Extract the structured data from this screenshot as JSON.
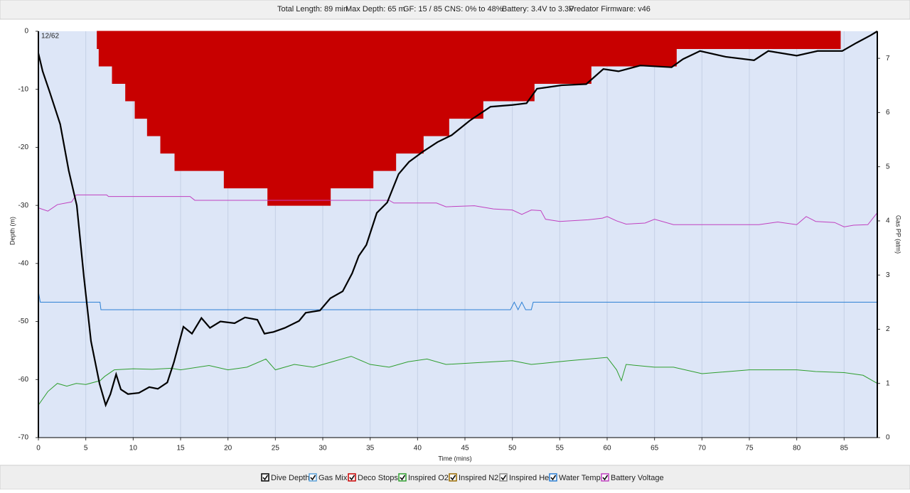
{
  "header": [
    "Total Length: 89 min",
    "Max Depth: 65 m",
    "GF: 15 / 85",
    "CNS: 0% to 48%",
    "Battery: 3.4V to 3.3V",
    "Predator Firmware: v46"
  ],
  "corner_label": "12/62",
  "chart_data": {
    "type": "line",
    "xlabel": "Time (mins)",
    "ylabel": "Depth (m)",
    "y2label": "Gas PP (atm)",
    "xlim": [
      0,
      88.5
    ],
    "xticks": [
      0,
      5,
      10,
      15,
      20,
      25,
      30,
      35,
      40,
      45,
      50,
      55,
      60,
      65,
      70,
      75,
      80,
      85
    ],
    "ylim": [
      -70,
      0
    ],
    "yticks": [
      0,
      -10,
      -20,
      -30,
      -40,
      -50,
      -60,
      -70
    ],
    "y2lim": [
      0,
      7.5
    ],
    "y2ticks": [
      0,
      1,
      2,
      3,
      4,
      5,
      6,
      7
    ],
    "grid": true,
    "series": [
      {
        "name": "Dive Depth",
        "color": "#000000",
        "x": [
          0,
          0.45,
          1.2,
          2.3,
          3.2,
          4.05,
          4.8,
          5.55,
          6.45,
          7.1,
          7.6,
          8.2,
          8.7,
          9.45,
          10.6,
          11.7,
          12.6,
          13.6,
          14.3,
          15.3,
          16.2,
          17.2,
          18.1,
          19.2,
          20.7,
          21.8,
          23.1,
          23.85,
          24.8,
          26,
          27.5,
          28.2,
          29.7,
          30.8,
          32.1,
          33.1,
          33.8,
          34.6,
          35.7,
          36.8,
          38,
          39.1,
          40.6,
          42.1,
          43.6,
          45.5,
          47.7,
          50,
          51.5,
          52.6,
          55.2,
          57.8,
          59.6,
          61.2,
          63.5,
          66.8,
          68,
          69.8,
          72.5,
          75.5,
          77,
          80,
          82.2,
          84.8,
          86.3,
          87.8,
          88.5
        ],
        "values": [
          -3.8,
          -6.9,
          -10.5,
          -16,
          -24,
          -30,
          -42.3,
          -53.4,
          -60.7,
          -64.4,
          -62.5,
          -59.1,
          -61.7,
          -62.5,
          -62.3,
          -61.3,
          -61.6,
          -60.5,
          -57,
          -50.9,
          -52.1,
          -49.4,
          -51.1,
          -50,
          -50.3,
          -49.3,
          -49.7,
          -52.1,
          -51.8,
          -51.1,
          -49.9,
          -48.5,
          -48.1,
          -46,
          -44.8,
          -41.7,
          -38.7,
          -36.8,
          -31.3,
          -29.5,
          -24.6,
          -22.5,
          -20.7,
          -19.1,
          -17.9,
          -15.4,
          -13,
          -12.7,
          -12.4,
          -9.9,
          -9.3,
          -9.1,
          -6.5,
          -6.9,
          -5.9,
          -6.2,
          -4.8,
          -3.4,
          -4.4,
          -5,
          -3.4,
          -4.2,
          -3.4,
          -3.4,
          -2,
          -0.7,
          0
        ]
      },
      {
        "name": "Gas Mix",
        "color": "#5aa0d8"
      },
      {
        "name": "Deco Stops",
        "color": "#c80000",
        "kind": "step-area",
        "x": [
          6.2,
          6.4,
          7.8,
          9.2,
          10.2,
          11.5,
          12.9,
          14.4,
          19.6,
          24.2,
          30.8,
          35.3,
          37.7,
          40.6,
          43.3,
          46.9,
          52.3,
          58.3,
          67.3,
          84.6
        ],
        "values": [
          -3,
          -6,
          -9,
          -12,
          -15,
          -18,
          -21,
          -24,
          -27,
          -30,
          -27,
          -24,
          -21,
          -18,
          -15,
          -12,
          -9,
          -6,
          -3,
          0
        ]
      },
      {
        "name": "Inspired O2",
        "color": "#2e9e2e",
        "axis": "y2",
        "x": [
          0,
          1,
          2,
          3,
          4,
          5,
          6.5,
          7,
          8,
          10,
          12,
          14,
          15,
          18,
          20,
          22,
          24,
          25,
          27,
          29,
          31,
          33,
          35,
          37,
          39,
          41,
          43,
          46,
          50,
          52,
          56,
          60,
          61,
          61.5,
          62,
          65,
          67,
          70,
          75,
          80,
          82,
          85,
          87,
          88.5
        ],
        "values": [
          0.6,
          0.85,
          1.0,
          0.95,
          1.0,
          0.98,
          1.05,
          1.13,
          1.25,
          1.27,
          1.26,
          1.28,
          1.25,
          1.33,
          1.25,
          1.3,
          1.45,
          1.25,
          1.35,
          1.3,
          1.4,
          1.5,
          1.35,
          1.3,
          1.4,
          1.45,
          1.35,
          1.38,
          1.42,
          1.35,
          1.42,
          1.48,
          1.25,
          1.05,
          1.35,
          1.3,
          1.3,
          1.18,
          1.25,
          1.25,
          1.22,
          1.2,
          1.15,
          1.0
        ]
      },
      {
        "name": "Inspired N2",
        "color": "#9a6a00"
      },
      {
        "name": "Inspired He",
        "color": "#888888"
      },
      {
        "name": "Water Temp",
        "color": "#2a7fd4",
        "axis": "y2",
        "x": [
          0,
          0.2,
          6.5,
          6.6,
          49.8,
          50.2,
          50.6,
          51,
          51.4,
          52,
          52.2,
          88.5
        ],
        "values": [
          2.7,
          2.5,
          2.5,
          2.36,
          2.36,
          2.5,
          2.36,
          2.5,
          2.36,
          2.36,
          2.5,
          2.5
        ]
      },
      {
        "name": "Battery Voltage",
        "color": "#c040c0",
        "axis": "y2",
        "x": [
          0,
          1,
          2,
          3.5,
          4,
          7.2,
          7.4,
          16,
          16.5,
          37,
          37.5,
          42,
          43,
          46,
          48,
          50,
          51,
          52,
          53,
          53.5,
          55,
          58,
          59.5,
          60,
          61,
          62,
          64,
          65,
          67,
          70,
          76,
          78,
          80,
          81,
          82,
          84,
          85,
          86,
          87.5,
          88.5
        ],
        "values": [
          4.24,
          4.18,
          4.3,
          4.35,
          4.48,
          4.48,
          4.45,
          4.45,
          4.38,
          4.38,
          4.33,
          4.33,
          4.26,
          4.28,
          4.22,
          4.2,
          4.12,
          4.2,
          4.19,
          4.03,
          3.99,
          4.02,
          4.05,
          4.08,
          4.0,
          3.94,
          3.96,
          4.03,
          3.93,
          3.93,
          3.93,
          3.98,
          3.93,
          4.08,
          3.99,
          3.97,
          3.89,
          3.92,
          3.93,
          4.15
        ]
      }
    ]
  }
}
